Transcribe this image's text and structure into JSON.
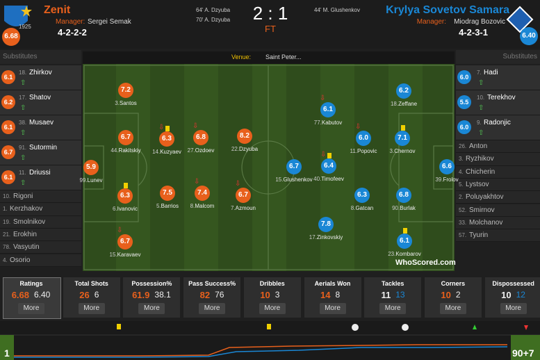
{
  "header": {
    "home": {
      "name": "Zenit",
      "rating": "6.68",
      "manager_label": "Manager:",
      "manager": "Sergei Semak",
      "formation": "4-2-2-2",
      "logo_year": "1925"
    },
    "away": {
      "name": "Krylya Sovetov Samara",
      "rating": "6.40",
      "manager_label": "Manager:",
      "manager": "Miodrag Bozovic",
      "formation": "4-2-3-1"
    },
    "home_goals": [
      "64' A. Dzyuba",
      "70' A. Dzyuba"
    ],
    "away_goals": [
      "44' M. Glushenkov"
    ],
    "score": "2 : 1",
    "status": "FT"
  },
  "venue": {
    "label": "Venue:",
    "name": "Saint Peter..."
  },
  "home_subs": {
    "label": "Substitutes",
    "players": [
      {
        "number": "18.",
        "name": "Zhirkov",
        "rating": "6.1"
      },
      {
        "number": "17.",
        "name": "Shatov",
        "rating": "6.2"
      },
      {
        "number": "38.",
        "name": "Musaev",
        "rating": "6.1"
      },
      {
        "number": "91.",
        "name": "Sutormin",
        "rating": "6.7"
      },
      {
        "number": "11.",
        "name": "Driussi",
        "rating": "6.1"
      },
      {
        "number": "10.",
        "name": "Rigoni"
      },
      {
        "number": "1.",
        "name": "Kerzhakov"
      },
      {
        "number": "19.",
        "name": "Smolnikov"
      },
      {
        "number": "21.",
        "name": "Erokhin"
      },
      {
        "number": "78.",
        "name": "Vasyutin"
      },
      {
        "number": "4.",
        "name": "Osorio"
      }
    ]
  },
  "away_subs": {
    "label": "Substitutes",
    "players": [
      {
        "number": "7.",
        "name": "Hadi",
        "rating": "6.0"
      },
      {
        "number": "10.",
        "name": "Terekhov",
        "rating": "5.5"
      },
      {
        "number": "9.",
        "name": "Radonjic",
        "rating": "6.0"
      },
      {
        "number": "26.",
        "name": "Anton"
      },
      {
        "number": "3.",
        "name": "Ryzhikov"
      },
      {
        "number": "4.",
        "name": "Chicherin"
      },
      {
        "number": "5.",
        "name": "Lystsov"
      },
      {
        "number": "2.",
        "name": "Poluyakhtov"
      },
      {
        "number": "52.",
        "name": "Smirnov"
      },
      {
        "number": "33.",
        "name": "Molchanov"
      },
      {
        "number": "57.",
        "name": "Tyurin"
      }
    ]
  },
  "home_players": [
    {
      "number": "99.",
      "name": "Lunev",
      "rating": "5.9"
    },
    {
      "number": "3.",
      "name": "Santos",
      "rating": "7.2"
    },
    {
      "number": "44.",
      "name": "Rakitskiy",
      "rating": "6.7"
    },
    {
      "number": "6.",
      "name": "Ivanovic",
      "rating": "6.3"
    },
    {
      "number": "15.",
      "name": "Karavaev",
      "rating": "6.7"
    },
    {
      "number": "14.",
      "name": "Kuzyaev",
      "rating": "6.3"
    },
    {
      "number": "5.",
      "name": "Barrios",
      "rating": "7.5"
    },
    {
      "number": "27.",
      "name": "Ozdoev",
      "rating": "6.8"
    },
    {
      "number": "8.",
      "name": "Malcom",
      "rating": "7.4"
    },
    {
      "number": "22.",
      "name": "Dzyuba",
      "rating": "8.2"
    },
    {
      "number": "7.",
      "name": "Azmoun",
      "rating": "6.7"
    }
  ],
  "away_players": [
    {
      "number": "39.",
      "name": "Frolov",
      "rating": "6.6"
    },
    {
      "number": "18.",
      "name": "Zeffane",
      "rating": "6.2"
    },
    {
      "number": "3.",
      "name": "Chernov",
      "rating": "7.1"
    },
    {
      "number": "90.",
      "name": "Burlak",
      "rating": "6.8"
    },
    {
      "number": "23.",
      "name": "Kombarov",
      "rating": "6.1"
    },
    {
      "number": "77.",
      "name": "Kabutov",
      "rating": "6.1"
    },
    {
      "number": "11.",
      "name": "Popovic",
      "rating": "6.0"
    },
    {
      "number": "40.",
      "name": "Timofeev",
      "rating": "6.4"
    },
    {
      "number": "8.",
      "name": "Gatcan",
      "rating": "6.3"
    },
    {
      "number": "17.",
      "name": "Zinkovskiy",
      "rating": "7.8"
    },
    {
      "number": "15.",
      "name": "Glushenkov",
      "rating": "6.7"
    }
  ],
  "stats": [
    {
      "label": "Ratings",
      "home": "6.68",
      "away": "6.40",
      "leader": "home",
      "more": "More"
    },
    {
      "label": "Total Shots",
      "home": "26",
      "away": "6",
      "leader": "home",
      "more": "More"
    },
    {
      "label": "Possession%",
      "home": "61.9",
      "away": "38.1",
      "leader": "home",
      "more": "More"
    },
    {
      "label": "Pass Success%",
      "home": "82",
      "away": "76",
      "leader": "home",
      "more": "More"
    },
    {
      "label": "Dribbles",
      "home": "10",
      "away": "3",
      "leader": "home",
      "more": "More"
    },
    {
      "label": "Aerials Won",
      "home": "14",
      "away": "8",
      "leader": "home",
      "more": "More"
    },
    {
      "label": "Tackles",
      "home": "11",
      "away": "13",
      "leader": "away",
      "more": "More"
    },
    {
      "label": "Corners",
      "home": "10",
      "away": "2",
      "leader": "home",
      "more": "More"
    },
    {
      "label": "Dispossessed",
      "home": "10",
      "away": "12",
      "leader": "away",
      "more": "More"
    }
  ],
  "timeline": {
    "start": "1",
    "end": "90+7"
  },
  "brand": "WhoScored.com"
}
